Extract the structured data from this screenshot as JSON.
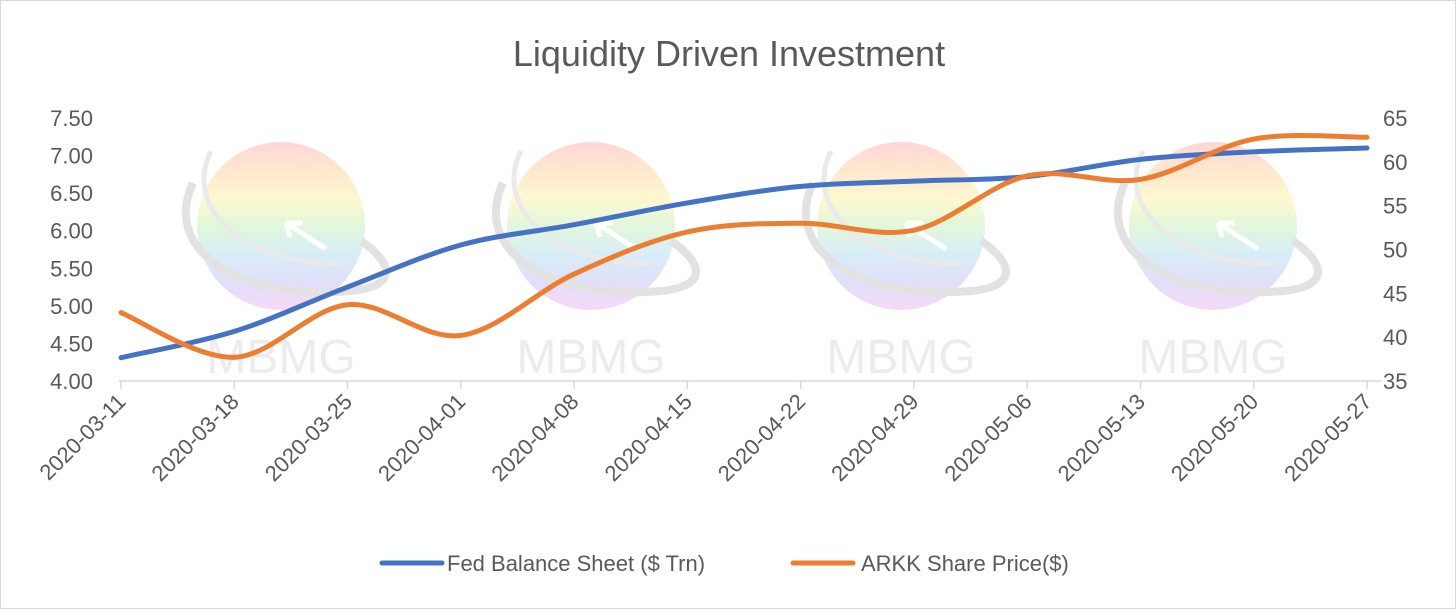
{
  "chart_data": {
    "type": "line",
    "title": "Liquidity Driven Investment",
    "watermark": "MBMG",
    "x": [
      "2020-03-11",
      "2020-03-18",
      "2020-03-25",
      "2020-04-01",
      "2020-04-08",
      "2020-04-15",
      "2020-04-22",
      "2020-04-29",
      "2020-05-06",
      "2020-05-13",
      "2020-05-20",
      "2020-05-27"
    ],
    "y_left": {
      "min": 4.0,
      "max": 7.5,
      "ticks": [
        "4.00",
        "4.50",
        "5.00",
        "5.50",
        "6.00",
        "6.50",
        "7.00",
        "7.50"
      ]
    },
    "y_right": {
      "min": 35,
      "max": 65,
      "ticks": [
        "35",
        "40",
        "45",
        "50",
        "55",
        "60",
        "65"
      ]
    },
    "series": [
      {
        "name": "Fed Balance Sheet ($ Trn)",
        "axis": "left",
        "color": "#4472C4",
        "values": [
          4.31,
          4.66,
          5.25,
          5.81,
          6.08,
          6.37,
          6.59,
          6.66,
          6.72,
          6.95,
          7.05,
          7.1
        ]
      },
      {
        "name": "ARKK Share Price($)",
        "axis": "right",
        "color": "#ED7D31",
        "values": [
          42.8,
          37.7,
          43.7,
          40.2,
          47.2,
          52.0,
          53.0,
          52.2,
          58.4,
          58.0,
          62.6,
          62.8
        ]
      }
    ],
    "grid": false,
    "legend": "bottom"
  }
}
